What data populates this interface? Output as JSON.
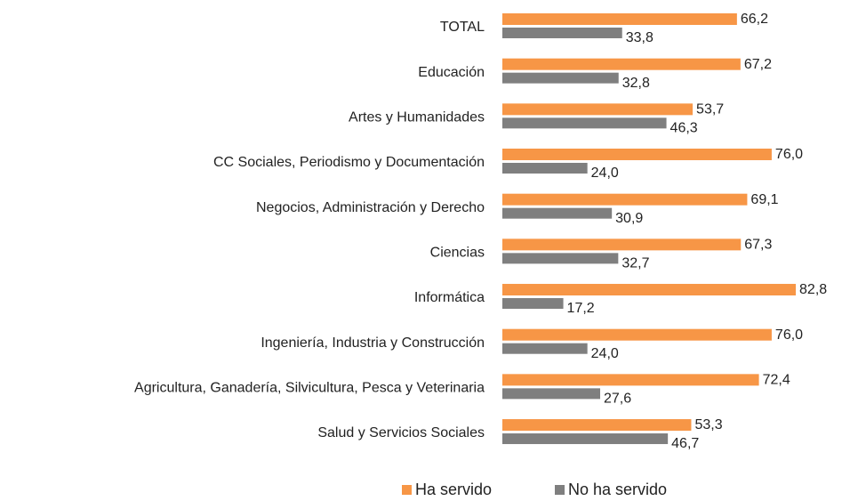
{
  "chart_data": {
    "type": "hbar",
    "categories": [
      "TOTAL",
      "Educación",
      "Artes y Humanidades",
      "CC Sociales, Periodismo y Documentación",
      "Negocios, Administración y Derecho",
      "Ciencias",
      "Informática",
      "Ingeniería, Industria y Construcción",
      "Agricultura, Ganadería, Silvicultura, Pesca y Veterinaria",
      "Salud y Servicios Sociales"
    ],
    "series": [
      {
        "name": "Ha servido",
        "color": "#f79646",
        "values": [
          66.2,
          67.2,
          53.7,
          76.0,
          69.1,
          67.3,
          82.8,
          76.0,
          72.4,
          53.3
        ],
        "value_labels": [
          "66,2",
          "67,2",
          "53,7",
          "76,0",
          "69,1",
          "67,3",
          "82,8",
          "76,0",
          "72,4",
          "53,3"
        ]
      },
      {
        "name": "No ha servido",
        "color": "#7f7f7f",
        "values": [
          33.8,
          32.8,
          46.3,
          24.0,
          30.9,
          32.7,
          17.2,
          24.0,
          27.6,
          46.7
        ],
        "value_labels": [
          "33,8",
          "32,8",
          "46,3",
          "24,0",
          "30,9",
          "32,7",
          "17,2",
          "24,0",
          "27,6",
          "46,7"
        ]
      }
    ],
    "legend": "bottom"
  }
}
